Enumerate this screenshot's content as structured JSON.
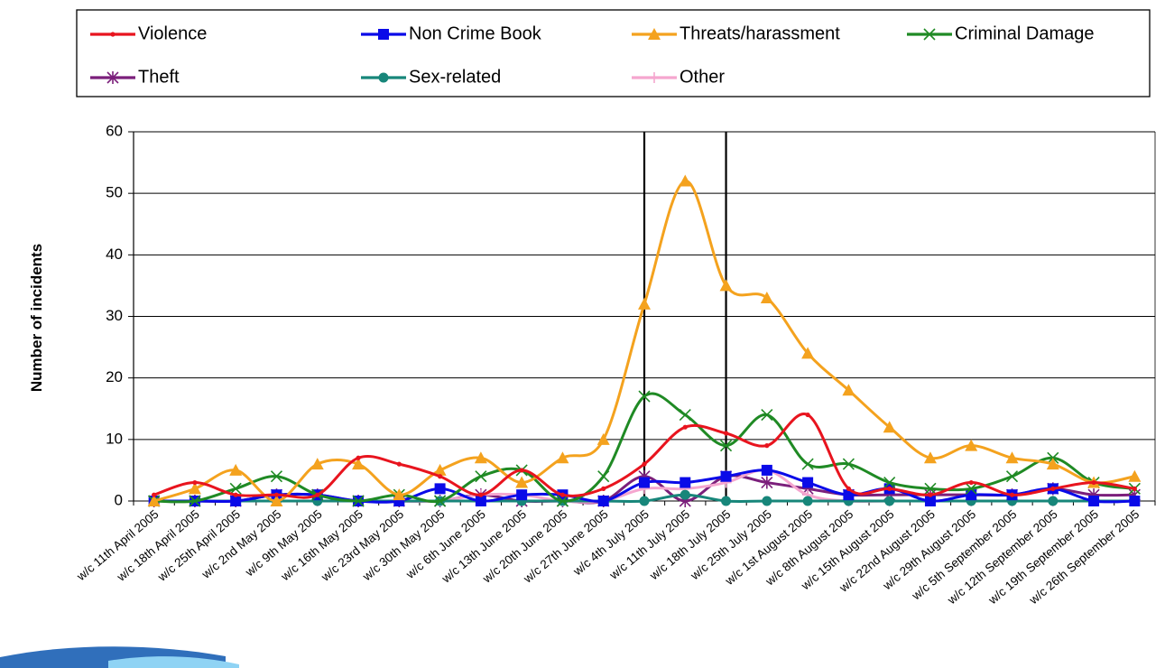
{
  "chart_data": {
    "type": "line",
    "title": "",
    "xlabel": "",
    "ylabel": "Number of incidents",
    "ylim": [
      0,
      60
    ],
    "yticks": [
      "0",
      "10",
      "20",
      "30",
      "40",
      "50",
      "60"
    ],
    "grid": true,
    "legend_position": "top",
    "categories": [
      "w/c 11th April 2005",
      "w/c 18th April 2005",
      "w/c 25th April 2005",
      "w/c 2nd May 2005",
      "w/c 9th May 2005",
      "w/c 16th May 2005",
      "w/c 23rd May 2005",
      "w/c 30th May 2005",
      "w/c 6th June 2005",
      "w/c 13th June 2005",
      "w/c 20th June 2005",
      "w/c 27th June 2005",
      "w/c 4th July 2005",
      "w/c 11th July 2005",
      "w/c 18th July 2005",
      "w/c 25th July 2005",
      "w/c 1st August 2005",
      "w/c 8th August 2005",
      "w/c 15th August 2005",
      "w/c 22nd August 2005",
      "w/c 29th August 2005",
      "w/c 5th September 2005",
      "w/c 12th September 2005",
      "w/c 19th September 2005",
      "w/c 26th September 2005"
    ],
    "vertical_markers": [
      "w/c 4th July 2005",
      "w/c 18th July 2005"
    ],
    "series": [
      {
        "name": "Violence",
        "color": "#e8141e",
        "marker": "dot",
        "values": [
          1,
          3,
          1,
          1,
          1,
          7,
          6,
          4,
          1,
          5,
          1,
          2,
          6,
          12,
          11,
          9,
          14,
          2,
          2,
          1,
          3,
          1,
          2,
          3,
          2
        ]
      },
      {
        "name": "Non Crime Book",
        "color": "#0a0ae8",
        "marker": "square",
        "values": [
          0,
          0,
          0,
          1,
          1,
          0,
          0,
          2,
          0,
          1,
          1,
          0,
          3,
          3,
          4,
          5,
          3,
          1,
          2,
          0,
          1,
          1,
          2,
          0,
          0
        ]
      },
      {
        "name": "Threats/harassment",
        "color": "#f4a21e",
        "marker": "triangle",
        "values": [
          0,
          2,
          5,
          0,
          6,
          6,
          1,
          5,
          7,
          3,
          7,
          10,
          32,
          52,
          35,
          33,
          24,
          18,
          12,
          7,
          9,
          7,
          6,
          3,
          4
        ]
      },
      {
        "name": "Criminal Damage",
        "color": "#1f8a24",
        "marker": "x",
        "values": [
          0,
          0,
          2,
          4,
          1,
          0,
          1,
          0,
          4,
          5,
          0,
          4,
          17,
          14,
          9,
          14,
          6,
          6,
          3,
          2,
          2,
          4,
          7,
          3,
          2
        ]
      },
      {
        "name": "Theft",
        "color": "#7b1f7b",
        "marker": "star",
        "values": [
          0,
          0,
          0,
          1,
          1,
          0,
          0,
          0,
          1,
          0,
          0,
          0,
          4,
          0,
          4,
          3,
          2,
          1,
          1,
          1,
          1,
          1,
          2,
          1,
          1
        ]
      },
      {
        "name": "Sex-related",
        "color": "#17867a",
        "marker": "circle",
        "values": [
          0,
          0,
          0,
          0,
          0,
          0,
          0,
          0,
          0,
          0,
          0,
          0,
          0,
          1,
          0,
          0,
          0,
          0,
          0,
          0,
          0,
          0,
          0,
          0,
          0
        ]
      },
      {
        "name": "Other",
        "color": "#f5a6cf",
        "marker": "plus",
        "values": [
          0,
          0,
          0,
          0,
          0,
          0,
          0,
          0,
          1,
          1,
          0,
          0,
          2,
          2,
          3,
          5,
          1,
          0,
          0,
          0,
          0,
          0,
          0,
          0,
          0
        ]
      }
    ]
  }
}
